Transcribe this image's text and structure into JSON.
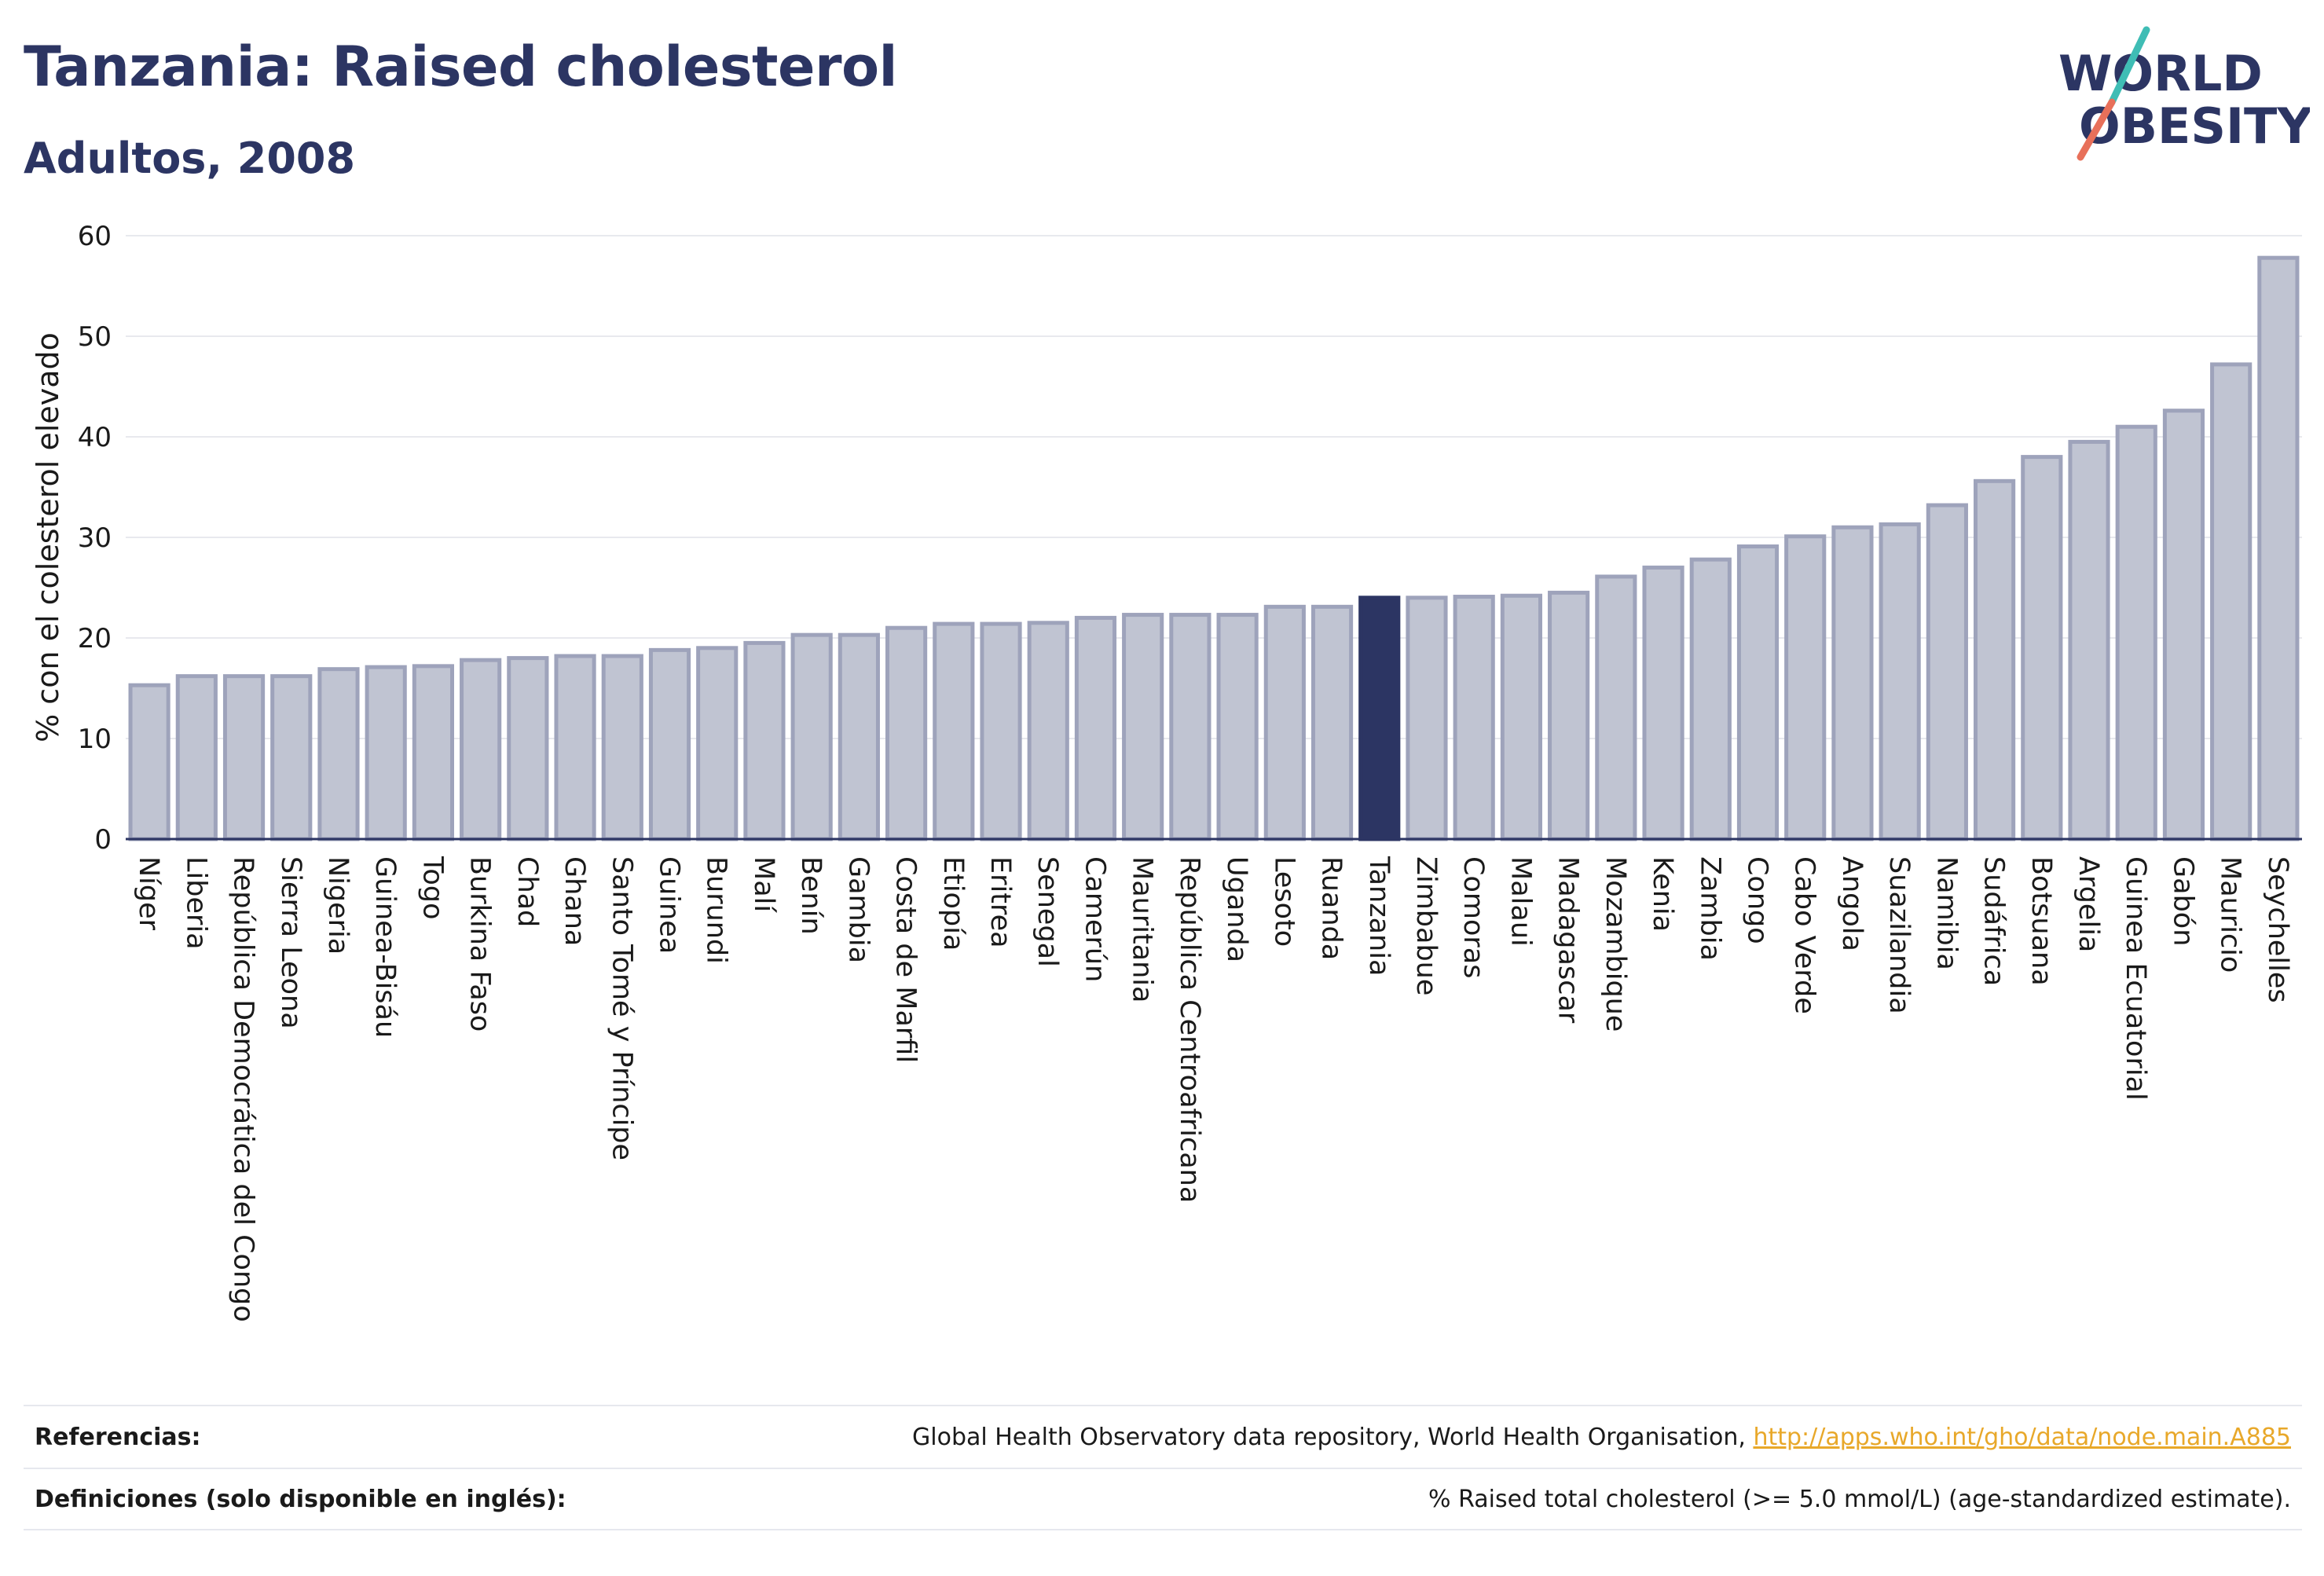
{
  "header": {
    "title": "Tanzania: Raised cholesterol",
    "subtitle": "Adultos, 2008"
  },
  "logo": {
    "line1": "WORLD",
    "line2": "OBESITY",
    "colors": {
      "text": "#2c3563",
      "slash_top": "#3fbdb5",
      "slash_bottom": "#e8705a"
    }
  },
  "chart_data": {
    "type": "bar",
    "ylabel": "% con el colesterol elevado",
    "xlabel": "",
    "ylim": [
      0,
      60
    ],
    "yticks": [
      0,
      10,
      20,
      30,
      40,
      50,
      60
    ],
    "grid": true,
    "highlight": "Tanzania",
    "colors": {
      "bar": "#c0c4d2",
      "bar_stroke": "#9ea3bb",
      "highlight": "#2c3563",
      "grid": "#e8e9ee"
    },
    "categories": [
      "Níger",
      "Liberia",
      "República Democrática del Congo",
      "Sierra Leona",
      "Nigeria",
      "Guinea-Bisáu",
      "Togo",
      "Burkina Faso",
      "Chad",
      "Ghana",
      "Santo Tomé y Príncipe",
      "Guinea",
      "Burundi",
      "Malí",
      "Benín",
      "Gambia",
      "Costa de Marfil",
      "Etiopía",
      "Eritrea",
      "Senegal",
      "Camerún",
      "Mauritania",
      "República Centroafricana",
      "Uganda",
      "Lesoto",
      "Ruanda",
      "Tanzania",
      "Zimbabue",
      "Comoras",
      "Malaui",
      "Madagascar",
      "Mozambique",
      "Kenia",
      "Zambia",
      "Congo",
      "Cabo Verde",
      "Angola",
      "Suazilandia",
      "Namibia",
      "Sudáfrica",
      "Botsuana",
      "Argelia",
      "Guinea Ecuatorial",
      "Gabón",
      "Mauricio",
      "Seychelles"
    ],
    "values": [
      15.3,
      16.2,
      16.2,
      16.2,
      16.9,
      17.1,
      17.2,
      17.8,
      18.0,
      18.2,
      18.2,
      18.8,
      19.0,
      19.5,
      20.3,
      20.3,
      21.0,
      21.4,
      21.4,
      21.5,
      22.0,
      22.3,
      22.3,
      22.3,
      23.1,
      23.1,
      24.0,
      24.0,
      24.1,
      24.2,
      24.5,
      26.1,
      27.0,
      27.8,
      29.1,
      30.1,
      31.0,
      31.3,
      33.2,
      35.6,
      38.0,
      39.5,
      41.0,
      42.6,
      47.2,
      57.8
    ]
  },
  "footer": {
    "references_label": "Referencias:",
    "references_text": "Global Health Observatory data repository, World Health Organisation, ",
    "references_link": "http://apps.who.int/gho/data/node.main.A885",
    "definitions_label": "Definiciones (solo disponible en inglés):",
    "definitions_text": "% Raised total cholesterol (>= 5.0 mmol/L) (age-standardized estimate)."
  }
}
